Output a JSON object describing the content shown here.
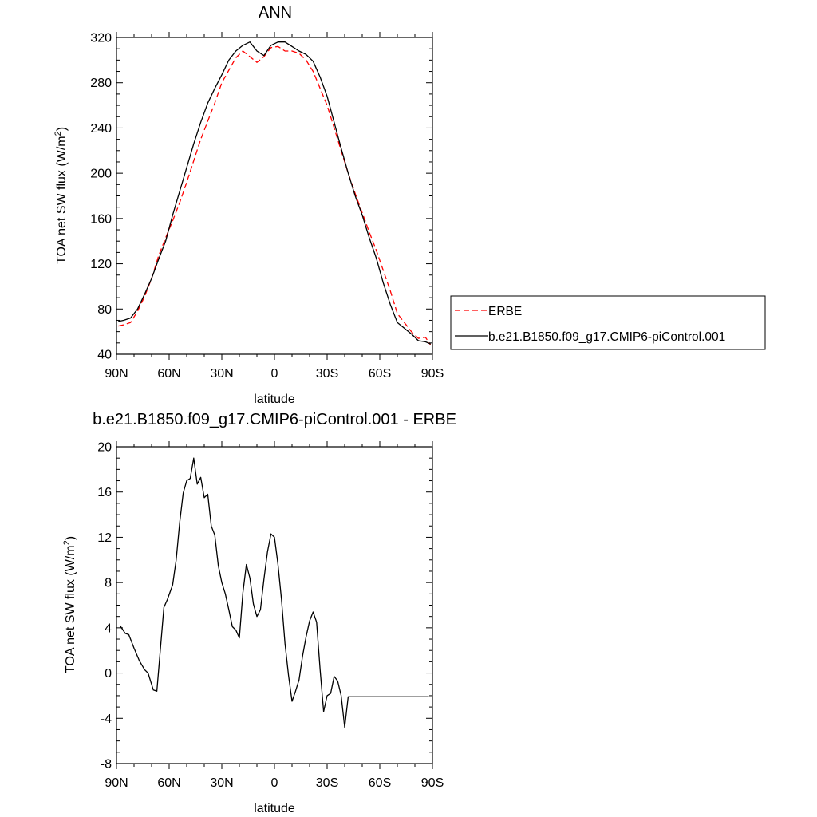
{
  "chart_data": [
    {
      "type": "line",
      "title": "ANN",
      "xlabel": "latitude",
      "ylabel_main": "TOA net SW flux (W/m",
      "ylabel_sup": "2",
      "ylabel_tail": ")",
      "xlim": [
        90,
        -90
      ],
      "ylim": [
        40,
        320
      ],
      "xticks": [
        {
          "v": 90,
          "label": "90N"
        },
        {
          "v": 60,
          "label": "60N"
        },
        {
          "v": 30,
          "label": "30N"
        },
        {
          "v": 0,
          "label": "0"
        },
        {
          "v": -30,
          "label": "30S"
        },
        {
          "v": -60,
          "label": "60S"
        },
        {
          "v": -90,
          "label": "90S"
        }
      ],
      "yticks": [
        40,
        80,
        120,
        160,
        200,
        240,
        280,
        320
      ],
      "legend": {
        "placement": "right-outside",
        "entries": [
          "ERBE",
          "b.e21.B1850.f09_g17.CMIP6-piControl.001"
        ]
      },
      "series": [
        {
          "name": "ERBE",
          "color": "#ff0000",
          "dash": "dashed",
          "x": [
            89,
            86,
            82,
            78,
            74,
            70,
            66,
            62,
            58,
            54,
            50,
            46,
            42,
            38,
            34,
            30,
            26,
            22,
            18,
            14,
            10,
            6,
            2,
            -2,
            -6,
            -10,
            -14,
            -18,
            -22,
            -26,
            -30,
            -34,
            -38,
            -42,
            -46,
            -50,
            -54,
            -58,
            -62,
            -66,
            -70,
            -74,
            -78,
            -82,
            -86,
            -89
          ],
          "y": [
            65,
            66,
            68,
            78,
            91,
            107,
            127,
            143,
            158,
            174,
            192,
            211,
            230,
            246,
            262,
            280,
            291,
            302,
            308,
            303,
            298,
            303,
            311,
            312,
            308,
            308,
            306,
            300,
            290,
            275,
            260,
            240,
            220,
            200,
            182,
            165,
            148,
            132,
            114,
            96,
            76,
            68,
            60,
            54,
            55,
            48
          ]
        },
        {
          "name": "b.e21.B1850.f09_g17.CMIP6-piControl.001",
          "color": "#000000",
          "dash": "solid",
          "x": [
            89,
            86,
            82,
            78,
            74,
            70,
            66,
            62,
            58,
            54,
            50,
            46,
            42,
            38,
            34,
            30,
            26,
            22,
            18,
            14,
            10,
            6,
            2,
            -2,
            -6,
            -10,
            -14,
            -18,
            -22,
            -26,
            -30,
            -34,
            -38,
            -42,
            -46,
            -50,
            -54,
            -58,
            -62,
            -66,
            -70,
            -74,
            -78,
            -82,
            -86,
            -89
          ],
          "y": [
            69,
            70,
            72,
            80,
            93,
            107,
            124,
            140,
            163,
            184,
            205,
            226,
            245,
            262,
            275,
            287,
            300,
            308,
            313,
            316,
            308,
            304,
            313,
            316,
            316,
            312,
            308,
            305,
            299,
            285,
            268,
            245,
            222,
            200,
            180,
            163,
            143,
            125,
            103,
            84,
            68,
            63,
            58,
            52,
            51,
            49
          ]
        }
      ]
    },
    {
      "type": "line",
      "title": "b.e21.B1850.f09_g17.CMIP6-piControl.001 - ERBE",
      "xlabel": "latitude",
      "ylabel_main": "TOA net SW flux (W/m",
      "ylabel_sup": "2",
      "ylabel_tail": ")",
      "xlim": [
        90,
        -90
      ],
      "ylim": [
        -8,
        20
      ],
      "xticks": [
        {
          "v": 90,
          "label": "90N"
        },
        {
          "v": 60,
          "label": "60N"
        },
        {
          "v": 30,
          "label": "30N"
        },
        {
          "v": 0,
          "label": "0"
        },
        {
          "v": -30,
          "label": "30S"
        },
        {
          "v": -60,
          "label": "60S"
        },
        {
          "v": -90,
          "label": "90S"
        }
      ],
      "yticks": [
        -8,
        -4,
        0,
        4,
        8,
        12,
        16,
        20
      ],
      "series": [
        {
          "name": "",
          "color": "#000000",
          "dash": "solid",
          "x": [
            88,
            85,
            83,
            80,
            77,
            74,
            72,
            69,
            67,
            63,
            61,
            58,
            56,
            54,
            52,
            50,
            48,
            46,
            44,
            42,
            40,
            38,
            36,
            34,
            32,
            30,
            28,
            26,
            24,
            22,
            20,
            18,
            16,
            14,
            12,
            10,
            8,
            6,
            4,
            2,
            0,
            -2,
            -4,
            -6,
            -8,
            -10,
            -12,
            -14,
            -16,
            -18,
            -20,
            -22,
            -24,
            -26,
            -28,
            -30,
            -32,
            -34,
            -36,
            -38,
            -40,
            -42,
            -44,
            -46,
            -48,
            -50,
            -52,
            -54,
            -56,
            -58,
            -60,
            -62,
            -64,
            -66,
            -68,
            -70,
            -72,
            -74,
            -76,
            -78,
            -80,
            -82,
            -84,
            -86,
            -88
          ],
          "y": [
            4.2,
            3.5,
            3.4,
            2.2,
            1.1,
            0.3,
            0.0,
            -1.5,
            -1.6,
            5.8,
            6.5,
            7.8,
            10.0,
            13.3,
            15.9,
            17.0,
            17.2,
            19.0,
            16.7,
            17.3,
            15.5,
            15.8,
            13.0,
            12.2,
            9.5,
            8.0,
            7.0,
            5.6,
            4.1,
            3.8,
            3.1,
            7.1,
            9.6,
            8.4,
            6.1,
            5.0,
            5.6,
            8.3,
            10.7,
            12.3,
            12.0,
            9.6,
            6.5,
            2.6,
            -0.2,
            -2.5,
            -1.6,
            -0.6,
            1.5,
            3.2,
            4.6,
            5.4,
            4.5,
            0.3,
            -3.4,
            -2.0,
            -1.8,
            -0.3,
            -0.7,
            -2.0,
            -4.8,
            -2.1,
            -2.1,
            -2.1,
            -2.1,
            -2.1,
            -2.1,
            -2.1,
            -2.1,
            -2.1,
            -2.1,
            -2.1,
            -2.1,
            -2.1,
            -2.1,
            -2.1,
            -2.1,
            -2.1,
            -2.1,
            -2.1,
            -2.1,
            -2.1,
            -2.1,
            -2.1,
            -2.1
          ]
        }
      ]
    }
  ]
}
